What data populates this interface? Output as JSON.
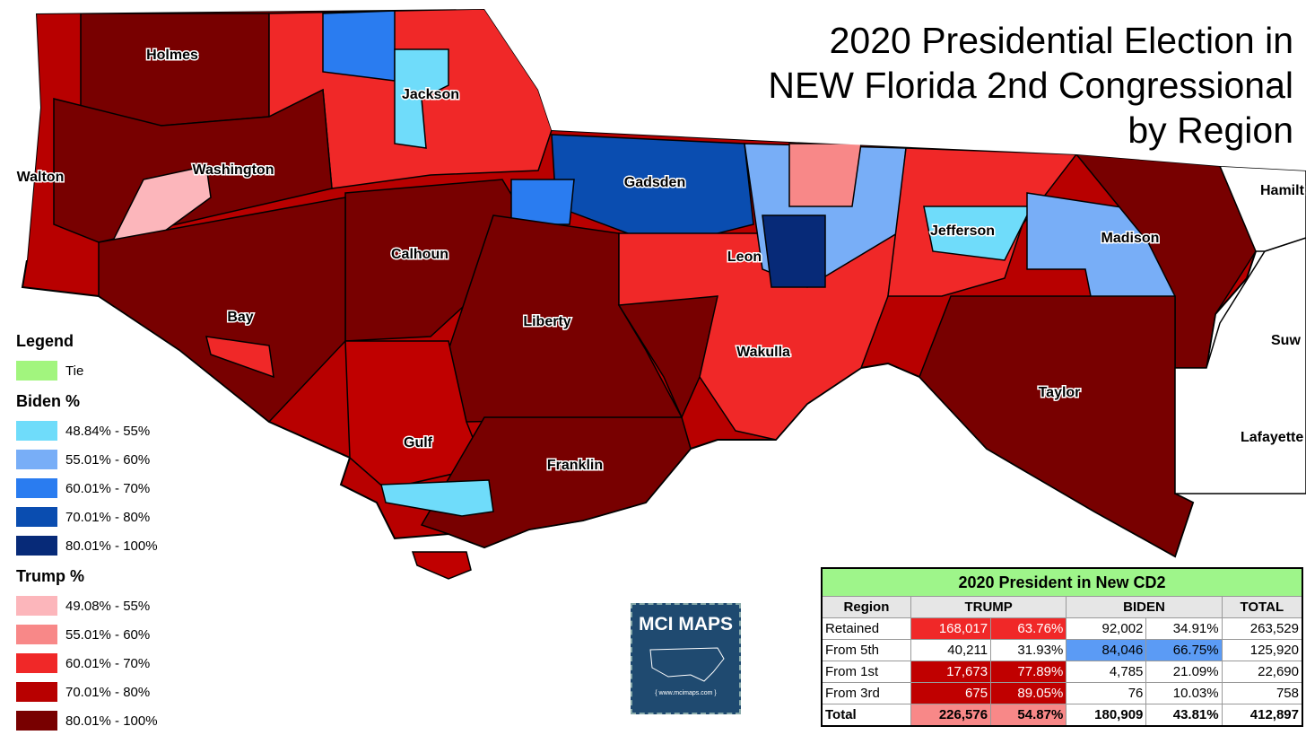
{
  "title": [
    "2020 Presidential Election in",
    "NEW Florida 2nd Congressional",
    "by Region"
  ],
  "counties": [
    "Holmes",
    "Jackson",
    "Walton",
    "Washington",
    "Gadsden",
    "Calhoun",
    "Leon",
    "Jefferson",
    "Madison",
    "Bay",
    "Liberty",
    "Wakulla",
    "Taylor",
    "Gulf",
    "Franklin",
    "Hamilt",
    "Suw",
    "Lafayette"
  ],
  "legend": {
    "title": "Legend",
    "tie": {
      "label": "Tie",
      "color": "#a2f57e"
    },
    "biden": {
      "title": "Biden  %",
      "items": [
        {
          "label": "48.84% - 55%",
          "color": "#6fdcfa"
        },
        {
          "label": "55.01% - 60%",
          "color": "#78aef7"
        },
        {
          "label": "60.01% - 70%",
          "color": "#2a7cf0"
        },
        {
          "label": "70.01% - 80%",
          "color": "#0a4db0"
        },
        {
          "label": "80.01% - 100%",
          "color": "#072a78"
        }
      ]
    },
    "trump": {
      "title": "Trump  %",
      "items": [
        {
          "label": "49.08% - 55%",
          "color": "#fcb6bb"
        },
        {
          "label": "55.01% - 60%",
          "color": "#f88888"
        },
        {
          "label": "60.01% - 70%",
          "color": "#f02828"
        },
        {
          "label": "70.01% - 80%",
          "color": "#b80000"
        },
        {
          "label": "80.01% - 100%",
          "color": "#780000"
        }
      ]
    }
  },
  "table": {
    "title": "2020 President in New CD2",
    "header": [
      "Region",
      "TRUMP",
      "BIDEN",
      "TOTAL"
    ],
    "rows": [
      [
        "Retained",
        "168,017",
        "63.76%",
        "92,002",
        "34.91%",
        "263,529"
      ],
      [
        "From 5th",
        "40,211",
        "31.93%",
        "84,046",
        "66.75%",
        "125,920"
      ],
      [
        "From 1st",
        "17,673",
        "77.89%",
        "4,785",
        "21.09%",
        "22,690"
      ],
      [
        "From 3rd",
        "675",
        "89.05%",
        "76",
        "10.03%",
        "758"
      ],
      [
        "Total",
        "226,576",
        "54.87%",
        "180,909",
        "43.81%",
        "412,897"
      ]
    ]
  },
  "logo": {
    "title": "MCI MAPS",
    "url": "{ www.mcimaps.com }"
  }
}
